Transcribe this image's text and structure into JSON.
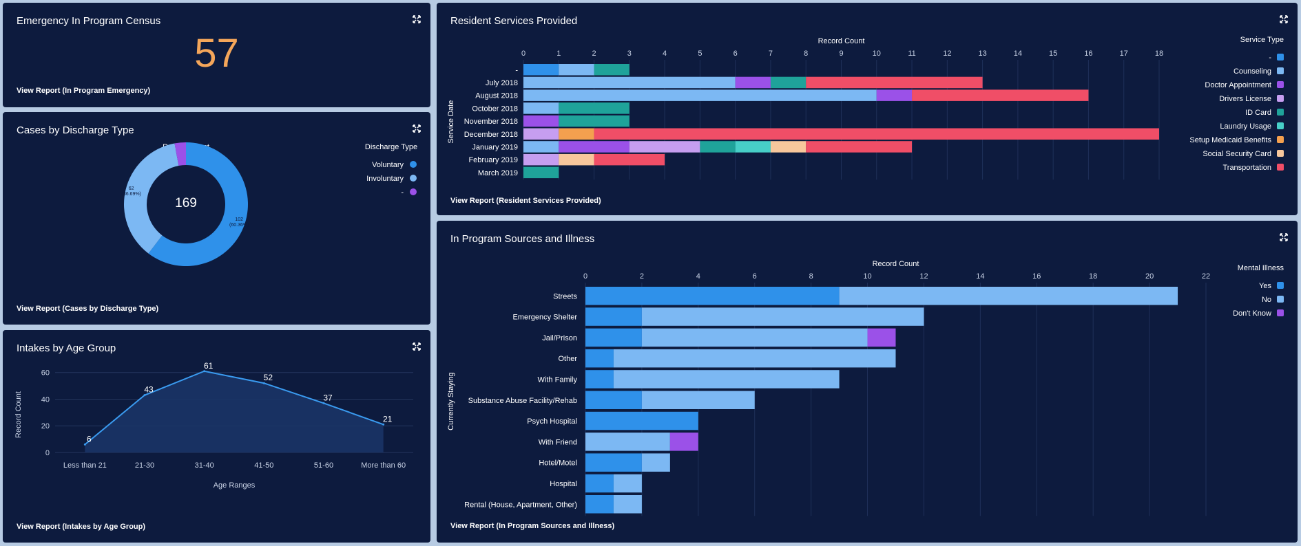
{
  "census": {
    "title": "Emergency In Program Census",
    "value": "57",
    "view_report": "View Report (In Program Emergency)"
  },
  "discharge": {
    "title": "Cases by Discharge Type",
    "view_report": "View Report (Cases by Discharge Type)",
    "legend_title": "Discharge Type",
    "center_value": "169"
  },
  "intakes": {
    "title": "Intakes by Age Group",
    "view_report": "View Report (Intakes by Age Group)"
  },
  "services": {
    "title": "Resident Services Provided",
    "view_report": "View Report (Resident Services Provided)",
    "legend_title": "Service Type"
  },
  "sources": {
    "title": "In Program Sources and Illness",
    "view_report": "View Report (In Program Sources and Illness)",
    "legend_title": "Mental Illness"
  },
  "chart_data": [
    {
      "id": "discharge",
      "type": "pie",
      "xlabel": "Record Count",
      "total": 169,
      "slices": [
        {
          "name": "Voluntary",
          "value": 102,
          "label": "102\n(60.36%)",
          "color": "#2f91ea"
        },
        {
          "name": "Involuntary",
          "value": 62,
          "label": "62\n(36.69%)",
          "color": "#7cb8f3"
        },
        {
          "name": "-",
          "value": 5,
          "label": "",
          "color": "#9b51e8"
        }
      ]
    },
    {
      "id": "intakes",
      "type": "area",
      "categories": [
        "Less than 21",
        "21-30",
        "31-40",
        "41-50",
        "51-60",
        "More than 60"
      ],
      "values": [
        6,
        43,
        61,
        52,
        37,
        21
      ],
      "xlabel": "Age Ranges",
      "ylabel": "Record Count",
      "yticks": [
        0,
        20,
        40,
        60
      ],
      "ylim": [
        0,
        65
      ]
    },
    {
      "id": "services",
      "type": "bar",
      "orientation": "horizontal",
      "stacked": true,
      "xlabel": "Record Count",
      "ylabel": "Service Date",
      "xticks": [
        0,
        1,
        2,
        3,
        4,
        5,
        6,
        7,
        8,
        9,
        10,
        11,
        12,
        13,
        14,
        15,
        16,
        17,
        18
      ],
      "xlim": [
        0,
        18
      ],
      "categories": [
        "-",
        "July 2018",
        "August 2018",
        "October 2018",
        "November 2018",
        "December 2018",
        "January 2019",
        "February 2019",
        "March 2019"
      ],
      "series": [
        {
          "name": "-",
          "color": "#2f91ea",
          "values": [
            1,
            0,
            0,
            0,
            0,
            0,
            0,
            0,
            0
          ]
        },
        {
          "name": "Counseling",
          "color": "#7cb8f3",
          "values": [
            1,
            6,
            10,
            1,
            0,
            0,
            1,
            0,
            0
          ]
        },
        {
          "name": "Doctor Appointment",
          "color": "#9b51e8",
          "values": [
            0,
            1,
            1,
            0,
            1,
            0,
            2,
            0,
            0
          ]
        },
        {
          "name": "Drivers License",
          "color": "#c69ef0",
          "values": [
            0,
            0,
            0,
            0,
            0,
            1,
            2,
            1,
            0
          ]
        },
        {
          "name": "ID Card",
          "color": "#1fa39a",
          "values": [
            1,
            1,
            0,
            2,
            2,
            0,
            1,
            0,
            1
          ]
        },
        {
          "name": "Laundry Usage",
          "color": "#47cfc8",
          "values": [
            0,
            0,
            0,
            0,
            0,
            0,
            1,
            0,
            0
          ]
        },
        {
          "name": "Setup Medicaid Benefits",
          "color": "#f4a04f",
          "values": [
            0,
            0,
            0,
            0,
            0,
            1,
            0,
            0,
            0
          ]
        },
        {
          "name": "Social Security Card",
          "color": "#f7c79c",
          "values": [
            0,
            0,
            0,
            0,
            0,
            0,
            1,
            1,
            0
          ]
        },
        {
          "name": "Transportation",
          "color": "#f04e67",
          "values": [
            0,
            5,
            5,
            0,
            0,
            16,
            3,
            2,
            0
          ]
        }
      ]
    },
    {
      "id": "sources",
      "type": "bar",
      "orientation": "horizontal",
      "stacked": true,
      "xlabel": "Record Count",
      "ylabel": "Currently Staying",
      "xticks": [
        0,
        2,
        4,
        6,
        8,
        10,
        12,
        14,
        16,
        18,
        20,
        22
      ],
      "xlim": [
        0,
        22
      ],
      "categories": [
        "Streets",
        "Emergency Shelter",
        "Jail/Prison",
        "Other",
        "With Family",
        "Substance Abuse Facility/Rehab",
        "Psych Hospital",
        "With Friend",
        "Hotel/Motel",
        "Hospital",
        "Rental (House, Apartment, Other)"
      ],
      "series": [
        {
          "name": "Yes",
          "color": "#2f91ea",
          "values": [
            9,
            2,
            2,
            1,
            1,
            2,
            4,
            0,
            2,
            1,
            1
          ]
        },
        {
          "name": "No",
          "color": "#7cb8f3",
          "values": [
            12,
            10,
            8,
            10,
            8,
            4,
            0,
            3,
            1,
            1,
            1
          ]
        },
        {
          "name": "Don't Know",
          "color": "#9b51e8",
          "values": [
            0,
            0,
            1,
            0,
            0,
            0,
            0,
            1,
            0,
            0,
            0
          ]
        }
      ]
    }
  ]
}
